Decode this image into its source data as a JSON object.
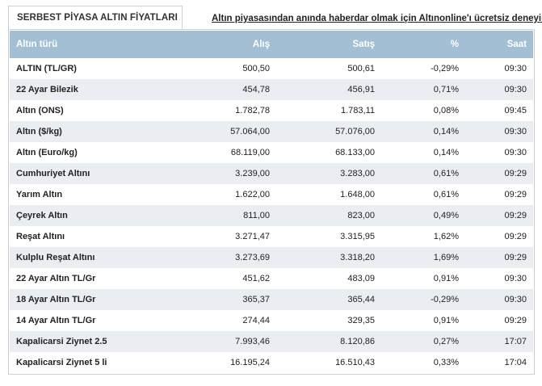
{
  "tab_title": "SERBEST PİYASA ALTIN FİYATLARI",
  "promo_link": "Altın piyasasından anında haberdar olmak için Altınonline'ı ücretsiz deneyin",
  "columns": [
    "Altın türü",
    "Alış",
    "Satış",
    "%",
    "Saat"
  ],
  "rows": [
    {
      "name": "ALTIN (TL/GR)",
      "alis": "500,50",
      "satis": "500,61",
      "pct": "-0,29%",
      "saat": "09:30"
    },
    {
      "name": "22 Ayar Bilezik",
      "alis": "454,78",
      "satis": "456,91",
      "pct": "0,71%",
      "saat": "09:30"
    },
    {
      "name": "Altın (ONS)",
      "alis": "1.782,78",
      "satis": "1.783,11",
      "pct": "0,08%",
      "saat": "09:45"
    },
    {
      "name": "Altın ($/kg)",
      "alis": "57.064,00",
      "satis": "57.076,00",
      "pct": "0,14%",
      "saat": "09:30"
    },
    {
      "name": "Altın (Euro/kg)",
      "alis": "68.119,00",
      "satis": "68.133,00",
      "pct": "0,14%",
      "saat": "09:30"
    },
    {
      "name": "Cumhuriyet Altını",
      "alis": "3.239,00",
      "satis": "3.283,00",
      "pct": "0,61%",
      "saat": "09:29"
    },
    {
      "name": "Yarım Altın",
      "alis": "1.622,00",
      "satis": "1.648,00",
      "pct": "0,61%",
      "saat": "09:29"
    },
    {
      "name": "Çeyrek Altın",
      "alis": "811,00",
      "satis": "823,00",
      "pct": "0,49%",
      "saat": "09:29"
    },
    {
      "name": "Reşat Altını",
      "alis": "3.271,47",
      "satis": "3.315,95",
      "pct": "1,62%",
      "saat": "09:29"
    },
    {
      "name": "Kulplu Reşat Altını",
      "alis": "3.273,69",
      "satis": "3.318,20",
      "pct": "1,69%",
      "saat": "09:29"
    },
    {
      "name": "22 Ayar Altın TL/Gr",
      "alis": "451,62",
      "satis": "483,09",
      "pct": "0,91%",
      "saat": "09:30"
    },
    {
      "name": "18 Ayar Altın TL/Gr",
      "alis": "365,37",
      "satis": "365,44",
      "pct": "-0,29%",
      "saat": "09:30"
    },
    {
      "name": "14 Ayar Altın TL/Gr",
      "alis": "274,44",
      "satis": "329,35",
      "pct": "0,91%",
      "saat": "09:29"
    },
    {
      "name": "Kapalicarsi Ziynet 2.5",
      "alis": "7.993,46",
      "satis": "8.120,86",
      "pct": "0,27%",
      "saat": "17:07"
    },
    {
      "name": "Kapalicarsi Ziynet 5 li",
      "alis": "16.195,24",
      "satis": "16.510,43",
      "pct": "0,33%",
      "saat": "17:04"
    }
  ],
  "colors": {
    "header_bg": "#a3bfd3",
    "stripe": "#eaeef2"
  }
}
